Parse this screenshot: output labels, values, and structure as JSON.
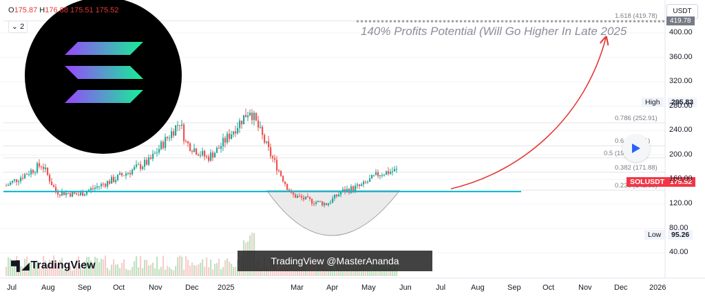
{
  "header": {
    "o_label": "O",
    "o_value": "175.87",
    "h_label": "H",
    "h_value": "176.88",
    "c_value_1": "175.51",
    "c_value_2": "175.52",
    "interval": "⌄ 2",
    "currency": "USDT"
  },
  "annotation": {
    "profit_text": "140% Profits Potential (Will Go Higher In Late 2025"
  },
  "fib_levels": [
    {
      "label": "1.618 (419.78)",
      "price": 419.78
    },
    {
      "label": "0.786 (252.91)",
      "price": 252.91
    },
    {
      "label": "0.6 (215.21)",
      "price": 215.21
    },
    {
      "label": "0.5 (195.55)",
      "price": 195.55
    },
    {
      "label": "0.382 (171.88)",
      "price": 171.88
    },
    {
      "label": "0.236 (142.59)",
      "price": 142.59
    }
  ],
  "price_tags": {
    "high_label": "High",
    "high_value": "295.83",
    "low_label": "Low",
    "low_value": "95.26",
    "symbol_label": "SOLUSDT",
    "symbol_value": "175.52",
    "target_value": "419.78"
  },
  "axes": {
    "y_ticks": [
      "400.00",
      "360.00",
      "320.00",
      "280.00",
      "240.00",
      "200.00",
      "160.00",
      "120.00",
      "80.00",
      "40.00"
    ],
    "x_ticks": [
      "Jul",
      "Aug",
      "Sep",
      "Oct",
      "Nov",
      "Dec",
      "2025",
      "Mar",
      "Apr",
      "May",
      "Jun",
      "Jul",
      "Aug",
      "Sep",
      "Oct",
      "Nov",
      "Dec",
      "2026"
    ]
  },
  "branding": {
    "watermark": "TradingView @MasterAnanda",
    "logo": "TradingView"
  },
  "colors": {
    "up": "#26a69a",
    "down": "#ef5350",
    "support": "#00bcd4",
    "arrow": "#e53935",
    "logo_gradient": [
      "#9945ff",
      "#14f195"
    ]
  },
  "chart_data": {
    "type": "candlestick",
    "symbol": "SOLUSDT",
    "x_range": [
      "Jul",
      "2026"
    ],
    "ylim": [
      40,
      420
    ],
    "support_level": 162,
    "all_time_high": 295.83,
    "low": 95.26,
    "last": 175.52,
    "target": 419.78,
    "monthly_close": [
      {
        "month": "Jul",
        "price": 150
      },
      {
        "month": "Aug",
        "price": 185
      },
      {
        "month": "Aug-mid",
        "price": 140
      },
      {
        "month": "Sep",
        "price": 135
      },
      {
        "month": "Oct",
        "price": 160
      },
      {
        "month": "Nov",
        "price": 190
      },
      {
        "month": "Nov-mid",
        "price": 255
      },
      {
        "month": "Dec",
        "price": 220
      },
      {
        "month": "Dec-mid",
        "price": 195
      },
      {
        "month": "2025",
        "price": 210
      },
      {
        "month": "2025-mid",
        "price": 275
      },
      {
        "month": "Feb",
        "price": 205
      },
      {
        "month": "Mar",
        "price": 135
      },
      {
        "month": "Mar-mid",
        "price": 125
      },
      {
        "month": "Apr",
        "price": 120
      },
      {
        "month": "Apr-mid",
        "price": 140
      },
      {
        "month": "May",
        "price": 150
      },
      {
        "month": "May-mid",
        "price": 170
      },
      {
        "month": "Jun",
        "price": 175
      }
    ]
  }
}
